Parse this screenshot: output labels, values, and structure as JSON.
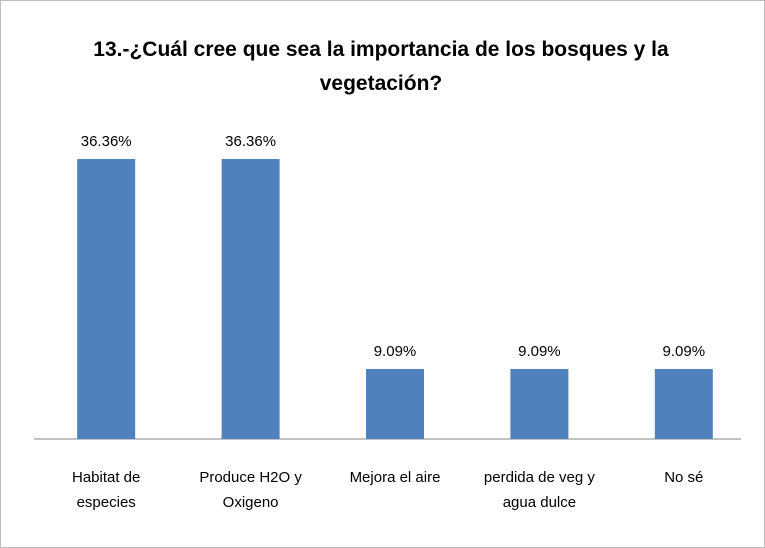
{
  "chart_data": {
    "type": "bar",
    "title": "13.-¿Cuál cree que sea la importancia de los bosques y la vegetación?",
    "categories": [
      "Habitat de especies",
      "Produce H2O y Oxigeno",
      "Mejora el aire",
      "perdida de veg y agua dulce",
      "No sé"
    ],
    "values": [
      36.36,
      36.36,
      9.09,
      9.09,
      9.09
    ],
    "value_labels": [
      "36.36%",
      "36.36%",
      "9.09%",
      "9.09%",
      "9.09%"
    ],
    "color": "#4f81bd"
  }
}
